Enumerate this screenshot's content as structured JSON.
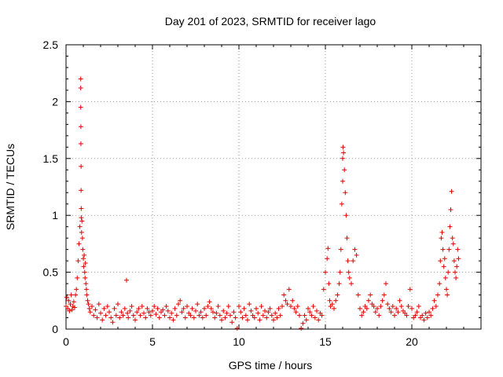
{
  "chart_data": {
    "type": "scatter",
    "title": "Day 201 of 2023, SRMTID for receiver lago",
    "xlabel": "GPS time / hours",
    "ylabel": "SRMTID / TECUs",
    "xlim": [
      0,
      24
    ],
    "ylim": [
      0,
      2.5
    ],
    "xticks": [
      0,
      5,
      10,
      15,
      20
    ],
    "xtick_labels": [
      "0",
      "5",
      "10",
      "15",
      "20"
    ],
    "yticks": [
      0,
      0.5,
      1,
      1.5,
      2,
      2.5
    ],
    "ytick_labels": [
      "0",
      "0.5",
      "1",
      "1.5",
      "2",
      "2.5"
    ],
    "grid": true,
    "marker": "+",
    "color": "#e00000",
    "series": [
      {
        "name": "SRMTID",
        "x": [
          0.0,
          0.05,
          0.1,
          0.15,
          0.2,
          0.25,
          0.3,
          0.35,
          0.4,
          0.45,
          0.5,
          0.55,
          0.6,
          0.65,
          0.7,
          0.75,
          0.8,
          0.85,
          0.85,
          0.85,
          0.86,
          0.86,
          0.87,
          0.87,
          0.88,
          0.88,
          0.9,
          0.92,
          0.95,
          0.97,
          1.0,
          1.02,
          1.05,
          1.08,
          1.1,
          1.12,
          1.15,
          1.18,
          1.2,
          1.25,
          1.3,
          1.35,
          1.4,
          1.5,
          1.6,
          1.7,
          1.8,
          1.9,
          2.0,
          2.1,
          2.2,
          2.3,
          2.4,
          2.5,
          2.6,
          2.7,
          2.8,
          2.9,
          3.0,
          3.1,
          3.2,
          3.3,
          3.4,
          3.5,
          3.55,
          3.6,
          3.7,
          3.8,
          3.9,
          4.0,
          4.1,
          4.2,
          4.3,
          4.4,
          4.5,
          4.6,
          4.7,
          4.8,
          4.9,
          5.0,
          5.1,
          5.2,
          5.3,
          5.4,
          5.5,
          5.6,
          5.7,
          5.8,
          5.9,
          6.0,
          6.1,
          6.2,
          6.3,
          6.4,
          6.5,
          6.6,
          6.7,
          6.8,
          6.9,
          7.0,
          7.1,
          7.2,
          7.3,
          7.4,
          7.5,
          7.6,
          7.7,
          7.8,
          7.9,
          8.0,
          8.1,
          8.2,
          8.3,
          8.4,
          8.5,
          8.6,
          8.7,
          8.8,
          8.9,
          9.0,
          9.1,
          9.2,
          9.3,
          9.4,
          9.5,
          9.6,
          9.7,
          9.8,
          9.9,
          10.0,
          10.1,
          10.2,
          10.3,
          10.4,
          10.5,
          10.6,
          10.7,
          10.8,
          10.9,
          11.0,
          11.1,
          11.2,
          11.3,
          11.4,
          11.5,
          11.6,
          11.7,
          11.8,
          11.9,
          12.0,
          12.1,
          12.2,
          12.3,
          12.4,
          12.5,
          12.6,
          12.7,
          12.8,
          12.9,
          13.0,
          13.1,
          13.2,
          13.3,
          13.4,
          13.5,
          13.6,
          13.7,
          13.8,
          13.9,
          14.0,
          14.1,
          14.2,
          14.3,
          14.4,
          14.5,
          14.6,
          14.7,
          14.8,
          14.9,
          15.0,
          15.1,
          15.15,
          15.2,
          15.25,
          15.3,
          15.4,
          15.5,
          15.6,
          15.7,
          15.8,
          15.85,
          15.9,
          15.95,
          16.0,
          16.0,
          16.02,
          16.05,
          16.1,
          16.15,
          16.2,
          16.25,
          16.3,
          16.35,
          16.4,
          16.5,
          16.6,
          16.7,
          16.8,
          16.9,
          17.0,
          17.1,
          17.2,
          17.3,
          17.4,
          17.5,
          17.6,
          17.7,
          17.8,
          17.9,
          18.0,
          18.1,
          18.2,
          18.3,
          18.4,
          18.5,
          18.6,
          18.7,
          18.8,
          18.9,
          19.0,
          19.1,
          19.2,
          19.3,
          19.4,
          19.5,
          19.6,
          19.7,
          19.8,
          19.9,
          20.0,
          20.1,
          20.2,
          20.3,
          20.4,
          20.5,
          20.6,
          20.7,
          20.8,
          20.9,
          21.0,
          21.1,
          21.2,
          21.3,
          21.4,
          21.5,
          21.6,
          21.65,
          21.7,
          21.75,
          21.8,
          21.85,
          21.9,
          21.95,
          22.0,
          22.05,
          22.1,
          22.15,
          22.2,
          22.25,
          22.3,
          22.35,
          22.4,
          22.45,
          22.5,
          22.55,
          22.6,
          22.65,
          22.7
        ],
        "y": [
          0.2,
          0.28,
          0.18,
          0.25,
          0.16,
          0.22,
          0.3,
          0.17,
          0.2,
          0.24,
          0.19,
          0.3,
          0.35,
          0.45,
          0.6,
          0.75,
          0.9,
          2.2,
          2.12,
          1.95,
          1.78,
          1.63,
          1.43,
          1.22,
          1.06,
          0.98,
          0.85,
          0.95,
          0.8,
          0.7,
          0.62,
          0.55,
          0.65,
          0.5,
          0.45,
          0.58,
          0.4,
          0.35,
          0.3,
          0.25,
          0.22,
          0.18,
          0.15,
          0.2,
          0.12,
          0.17,
          0.1,
          0.22,
          0.14,
          0.08,
          0.18,
          0.12,
          0.2,
          0.15,
          0.1,
          0.06,
          0.18,
          0.12,
          0.22,
          0.1,
          0.15,
          0.12,
          0.18,
          0.43,
          0.14,
          0.1,
          0.16,
          0.2,
          0.12,
          0.08,
          0.15,
          0.18,
          0.12,
          0.2,
          0.14,
          0.1,
          0.18,
          0.15,
          0.12,
          0.16,
          0.2,
          0.13,
          0.18,
          0.1,
          0.15,
          0.17,
          0.12,
          0.2,
          0.16,
          0.1,
          0.14,
          0.08,
          0.18,
          0.12,
          0.22,
          0.25,
          0.15,
          0.18,
          0.1,
          0.2,
          0.14,
          0.12,
          0.18,
          0.1,
          0.16,
          0.22,
          0.12,
          0.15,
          0.1,
          0.18,
          0.12,
          0.2,
          0.24,
          0.18,
          0.15,
          0.1,
          0.14,
          0.2,
          0.12,
          0.08,
          0.16,
          0.1,
          0.14,
          0.2,
          0.12,
          0.06,
          0.15,
          0.1,
          0.0,
          0.2,
          0.15,
          0.1,
          0.18,
          0.12,
          0.08,
          0.22,
          0.16,
          0.12,
          0.1,
          0.18,
          0.14,
          0.08,
          0.2,
          0.12,
          0.16,
          0.1,
          0.15,
          0.18,
          0.12,
          0.08,
          0.14,
          0.1,
          0.18,
          0.12,
          0.2,
          0.3,
          0.25,
          0.22,
          0.35,
          0.2,
          0.25,
          0.18,
          0.15,
          0.2,
          0.12,
          0.0,
          0.05,
          0.12,
          0.08,
          0.18,
          0.15,
          0.12,
          0.2,
          0.1,
          0.16,
          0.08,
          0.14,
          0.12,
          0.35,
          0.5,
          0.62,
          0.71,
          0.4,
          0.25,
          0.2,
          0.22,
          0.18,
          0.25,
          0.3,
          0.4,
          0.5,
          0.7,
          1.1,
          1.3,
          1.5,
          1.6,
          1.55,
          1.4,
          1.2,
          1.0,
          0.8,
          0.6,
          0.5,
          0.45,
          0.4,
          0.6,
          0.7,
          0.65,
          0.3,
          0.18,
          0.12,
          0.15,
          0.2,
          0.18,
          0.25,
          0.3,
          0.22,
          0.2,
          0.15,
          0.18,
          0.12,
          0.2,
          0.25,
          0.3,
          0.4,
          0.22,
          0.18,
          0.15,
          0.2,
          0.12,
          0.18,
          0.15,
          0.25,
          0.2,
          0.16,
          0.14,
          0.12,
          0.2,
          0.35,
          0.18,
          0.1,
          0.12,
          0.15,
          0.2,
          0.1,
          0.12,
          0.08,
          0.14,
          0.1,
          0.15,
          0.12,
          0.18,
          0.25,
          0.2,
          0.3,
          0.4,
          0.6,
          0.8,
          0.85,
          0.7,
          0.55,
          0.62,
          0.45,
          0.35,
          0.3,
          0.5,
          0.7,
          0.9,
          1.05,
          1.21,
          0.8,
          0.75,
          0.6,
          0.5,
          0.45,
          0.55,
          0.7,
          0.62
        ]
      }
    ]
  }
}
